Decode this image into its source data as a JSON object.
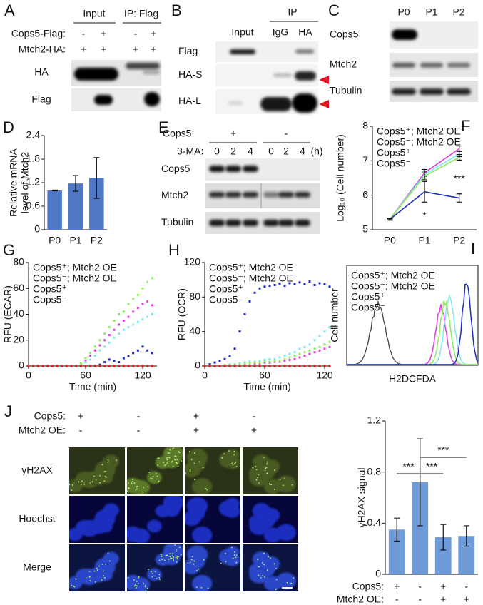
{
  "panel_A": {
    "label": "A",
    "headers": [
      "Input",
      "IP: Flag"
    ],
    "rows": [
      {
        "label": "Cops5-Flag:",
        "signs": [
          "-",
          "+",
          "-",
          "+"
        ]
      },
      {
        "label": "Mtch2-HA:",
        "signs": [
          "+",
          "+",
          "+",
          "+"
        ]
      }
    ],
    "blots": [
      "HA",
      "Flag"
    ]
  },
  "panel_B": {
    "label": "B",
    "header": "IP",
    "lanes": [
      "Input",
      "IgG",
      "HA"
    ],
    "blots": [
      "Flag",
      "HA-S",
      "HA-L"
    ]
  },
  "panel_C": {
    "label": "C",
    "lanes": [
      "P0",
      "P1",
      "P2"
    ],
    "blots": [
      "Cops5",
      "Mtch2",
      "Tubulin"
    ]
  },
  "panel_E": {
    "label": "E",
    "rows": [
      {
        "label": "Cops5:",
        "signs": [
          "+",
          "-"
        ]
      },
      {
        "label": "3-MA:",
        "signs": [
          0,
          2,
          4,
          0,
          2,
          4
        ]
      }
    ],
    "unit": "(h)",
    "blots": [
      "Cops5",
      "Mtch2",
      "Tubulin"
    ]
  },
  "panel_I": {
    "label": "I",
    "xlabel": "H2DCFDA",
    "ylabel": "Cell number",
    "legend": [
      {
        "name": "Cops5⁺; Mtch2 OE",
        "color": "#e03ce0"
      },
      {
        "name": "Cops5⁻; Mtch2 OE",
        "color": "#7fe8ee"
      },
      {
        "name": "Cops5⁺",
        "color": "#8cec5c"
      },
      {
        "name": "Cops5⁻",
        "color": "#1c2bbf"
      }
    ]
  },
  "panel_J": {
    "label": "J",
    "header": [
      "Cops5:",
      "Mtch2 OE:"
    ],
    "conditions": [
      [
        "+",
        "-"
      ],
      [
        "-",
        "-"
      ],
      [
        "+",
        "+"
      ],
      [
        "-",
        "+"
      ]
    ],
    "rows": [
      "γH2AX",
      "Hoechst",
      "Merge"
    ]
  },
  "chart_data": [
    {
      "panel": "D",
      "type": "bar",
      "ylabel": [
        "Relative mRNA",
        "level of Mtch2"
      ],
      "categories": [
        "P0",
        "P1",
        "P2"
      ],
      "values": [
        1.0,
        1.18,
        1.32
      ],
      "errors": [
        0.01,
        0.2,
        0.52
      ],
      "color": "#4f79c6",
      "ylim": [
        0,
        2.4
      ],
      "yticks": [
        0,
        0.6,
        1.2,
        1.8,
        2.4
      ]
    },
    {
      "panel": "F",
      "type": "line",
      "ylabel": "Log₁₀ (Cell number)",
      "categories": [
        "P0",
        "P1",
        "P2"
      ],
      "ylim": [
        5,
        8
      ],
      "yticks": [
        5,
        6,
        7,
        8
      ],
      "annotations": [
        "*",
        "***"
      ],
      "series": [
        {
          "name": "Cops5⁺; Mtch2 OE",
          "color": "#e03ce0",
          "values": [
            5.3,
            6.65,
            7.35
          ],
          "errors": [
            0.02,
            0.1,
            0.08
          ]
        },
        {
          "name": "Cops5⁻; Mtch2 OE",
          "color": "#7fe8ee",
          "values": [
            5.3,
            6.6,
            7.2
          ],
          "errors": [
            0.02,
            0.1,
            0.08
          ]
        },
        {
          "name": "Cops5⁺",
          "color": "#8cec5c",
          "values": [
            5.3,
            6.55,
            7.1
          ],
          "errors": [
            0.02,
            0.1,
            0.08
          ]
        },
        {
          "name": "Cops5⁻",
          "color": "#1c2bbf",
          "values": [
            5.3,
            6.1,
            5.92
          ],
          "errors": [
            0.02,
            0.3,
            0.12
          ]
        }
      ]
    },
    {
      "panel": "G",
      "type": "scatter",
      "ylabel": "RFU (ECAR)",
      "xlabel": "Time (min)",
      "xlim": [
        0,
        135
      ],
      "xticks": [
        0,
        60,
        120
      ],
      "ylim": [
        0,
        80
      ],
      "yticks": [
        0,
        20,
        40,
        60,
        80
      ],
      "x": [
        0,
        5,
        10,
        15,
        20,
        25,
        30,
        35,
        40,
        45,
        50,
        55,
        60,
        65,
        70,
        75,
        80,
        85,
        90,
        95,
        100,
        105,
        110,
        115,
        120,
        125,
        130
      ],
      "series": [
        {
          "name": "Cops5⁺; Mtch2 OE",
          "color": "#e03ce0",
          "values": [
            0,
            0,
            0,
            0,
            0,
            0,
            0,
            0,
            0,
            0,
            0,
            1,
            4,
            8,
            12,
            16,
            20,
            24,
            28,
            32,
            35,
            38,
            42,
            45,
            48,
            50,
            47
          ]
        },
        {
          "name": "Cops5⁻; Mtch2 OE",
          "color": "#7fe8ee",
          "values": [
            0,
            0,
            0,
            0,
            0,
            0,
            0,
            0,
            0,
            0,
            0,
            1,
            3,
            5,
            8,
            12,
            15,
            18,
            22,
            25,
            28,
            30,
            32,
            34,
            36,
            38,
            40
          ]
        },
        {
          "name": "Cops5⁺",
          "color": "#8cec5c",
          "values": [
            0,
            0,
            0,
            0,
            0,
            0,
            0,
            0,
            0,
            0,
            0,
            2,
            6,
            10,
            15,
            20,
            25,
            30,
            35,
            40,
            42,
            48,
            52,
            55,
            60,
            65,
            68
          ]
        },
        {
          "name": "Cops5⁻",
          "color": "#1c2bbf",
          "values": [
            0,
            0,
            0,
            0,
            0,
            0,
            0,
            0,
            0,
            0,
            0,
            0,
            0,
            0,
            0,
            1,
            3,
            5,
            4,
            3,
            6,
            8,
            10,
            12,
            15,
            12,
            10
          ]
        },
        {
          "color": "#e0201c",
          "values": [
            0,
            0,
            0,
            0,
            0,
            0,
            0,
            0,
            0,
            0,
            0,
            0,
            0,
            0,
            0,
            0,
            0,
            0,
            0,
            0,
            0,
            0,
            0,
            0,
            0,
            0,
            0
          ]
        }
      ]
    },
    {
      "panel": "H",
      "type": "scatter",
      "ylabel": "RFU (OCR)",
      "xlabel": "Time (min)",
      "xlim": [
        0,
        125
      ],
      "xticks": [
        0,
        60,
        120
      ],
      "ylim": [
        0,
        120
      ],
      "yticks": [
        0,
        40,
        80,
        120
      ],
      "x": [
        0,
        5,
        10,
        15,
        20,
        25,
        30,
        35,
        40,
        45,
        50,
        55,
        60,
        65,
        70,
        75,
        80,
        85,
        90,
        95,
        100,
        105,
        110,
        115,
        120,
        125
      ],
      "series": [
        {
          "name": "Cops5⁺; Mtch2 OE",
          "color": "#e03ce0",
          "values": [
            0,
            0,
            0,
            0,
            0,
            1,
            1,
            2,
            2,
            2,
            3,
            3,
            4,
            4,
            5,
            5,
            6,
            7,
            8,
            10,
            12,
            14,
            16,
            18,
            20,
            22
          ]
        },
        {
          "name": "Cops5⁻; Mtch2 OE",
          "color": "#7fe8ee",
          "values": [
            0,
            0,
            0,
            0,
            1,
            2,
            2,
            3,
            4,
            5,
            5,
            6,
            7,
            8,
            8,
            10,
            12,
            14,
            16,
            20,
            22,
            25,
            30,
            35,
            40,
            45
          ]
        },
        {
          "name": "Cops5⁺",
          "color": "#8cec5c",
          "values": [
            0,
            0,
            0,
            0,
            1,
            1,
            2,
            2,
            3,
            3,
            4,
            4,
            5,
            5,
            6,
            6,
            8,
            10,
            12,
            14,
            16,
            18,
            20,
            22,
            25,
            28
          ]
        },
        {
          "name": "Cops5⁻",
          "color": "#1c2bbf",
          "values": [
            0,
            2,
            4,
            6,
            8,
            12,
            20,
            40,
            60,
            75,
            85,
            90,
            92,
            93,
            94,
            95,
            93,
            96,
            95,
            97,
            95,
            98,
            94,
            96,
            95,
            92
          ]
        },
        {
          "color": "#e0201c",
          "values": [
            0,
            0,
            0,
            0,
            0,
            0,
            0,
            0,
            0,
            0,
            0,
            0,
            0,
            0,
            0,
            0,
            0,
            0,
            0,
            0,
            0,
            0,
            0,
            0,
            0,
            0
          ]
        }
      ]
    },
    {
      "panel": "J",
      "type": "bar",
      "ylabel": "γH2AX signal",
      "values": [
        0.35,
        0.72,
        0.29,
        0.3
      ],
      "errors": [
        0.09,
        0.34,
        0.1,
        0.08
      ],
      "color": "#6f9bd8",
      "ylim": [
        0,
        1.2
      ],
      "yticks": [
        0,
        0.4,
        0.8,
        1.2
      ],
      "significance": [
        "***",
        "***",
        "***"
      ],
      "rows": [
        {
          "label": "Cops5:",
          "signs": [
            "+",
            "-",
            "+",
            "-"
          ]
        },
        {
          "label": "Mtch2 OE:",
          "signs": [
            "-",
            "-",
            "+",
            "+"
          ]
        }
      ]
    }
  ]
}
